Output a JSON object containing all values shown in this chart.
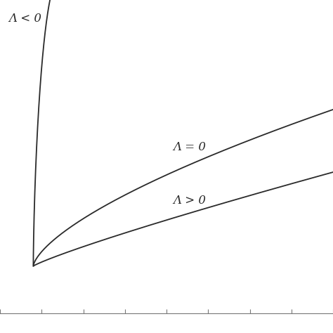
{
  "background_color": "#ffffff",
  "line_color": "#2a2a2a",
  "line_width": 1.3,
  "label_Lambda_neg": "Λ < 0",
  "label_Lambda_zero": "Λ = 0",
  "label_Lambda_pos": "Λ > 0",
  "label_fontsize": 12,
  "figsize": [
    4.74,
    4.74
  ],
  "dpi": 100,
  "xlim": [
    0,
    10
  ],
  "ylim": [
    0,
    10
  ]
}
